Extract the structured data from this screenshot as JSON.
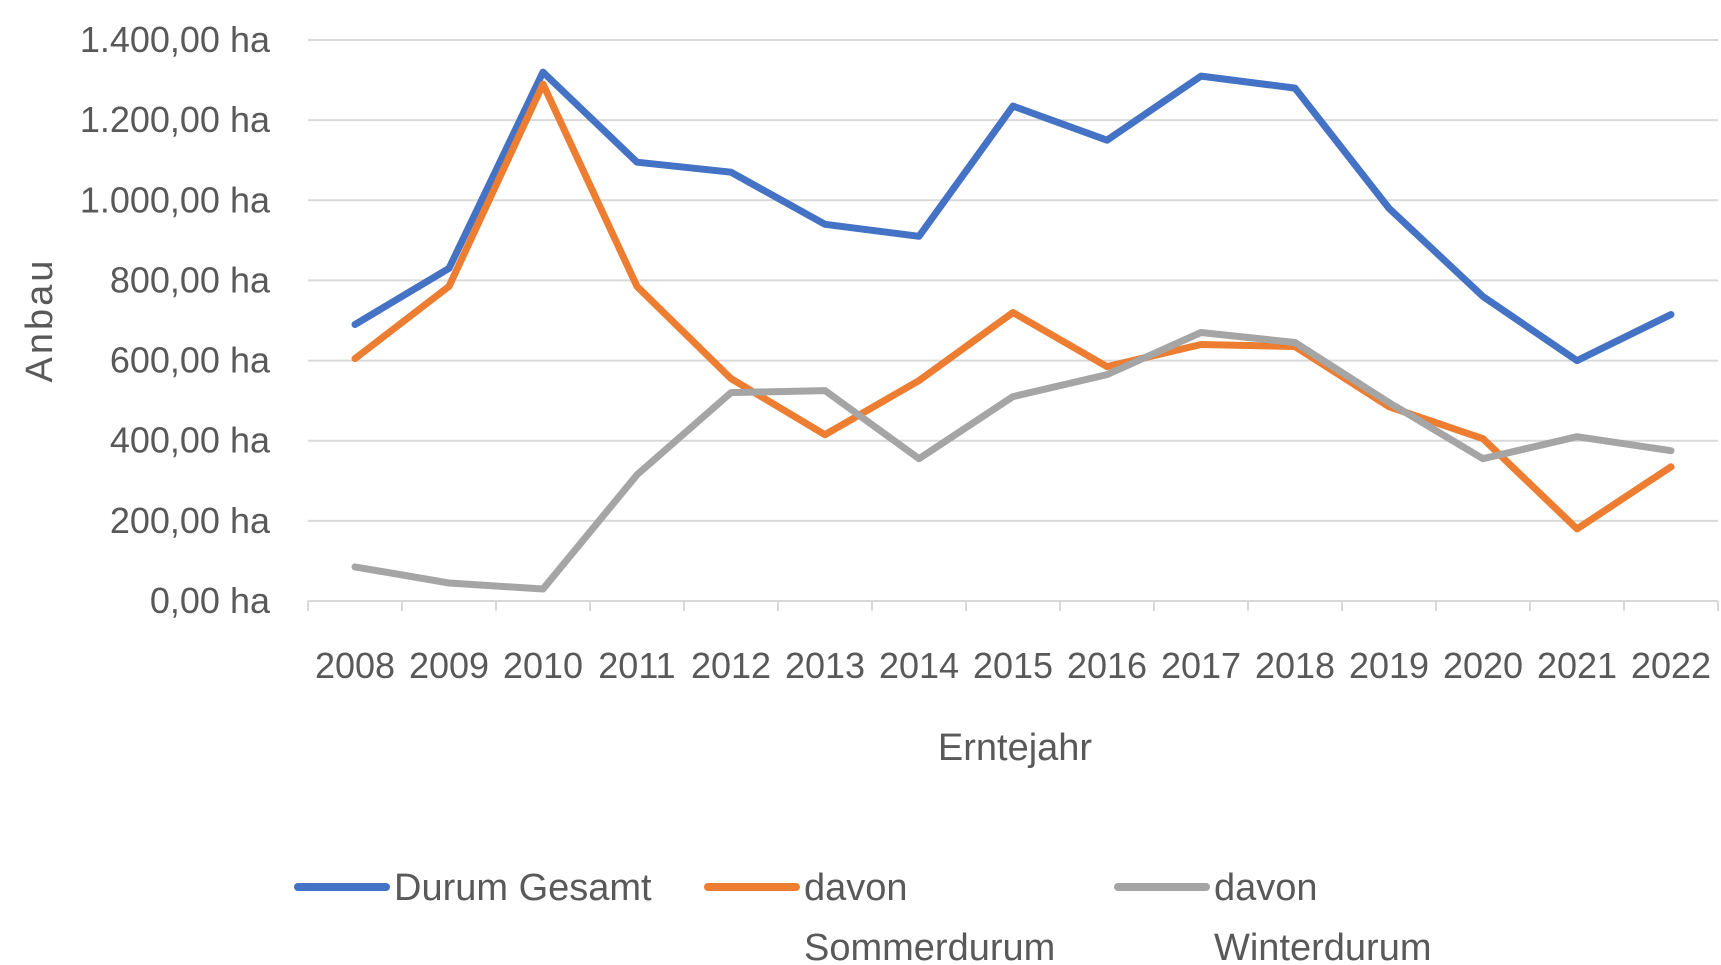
{
  "chart_data": {
    "type": "line",
    "title": "",
    "xlabel": "Erntejahr",
    "ylabel": "Anbau",
    "categories": [
      "2008",
      "2009",
      "2010",
      "2011",
      "2012",
      "2013",
      "2014",
      "2015",
      "2016",
      "2017",
      "2018",
      "2019",
      "2020",
      "2021",
      "2022"
    ],
    "y_tick_labels": [
      "0,00 ha",
      "200,00 ha",
      "400,00 ha",
      "600,00 ha",
      "800,00 ha",
      "1.000,00 ha",
      "1.200,00 ha",
      "1.400,00 ha"
    ],
    "ylim": [
      0,
      1400
    ],
    "grid": true,
    "legend_position": "bottom",
    "series": [
      {
        "name": "Durum Gesamt",
        "legend_lines": [
          "Durum Gesamt"
        ],
        "color": "#4472C4",
        "values": [
          690,
          830,
          1320,
          1095,
          1070,
          940,
          910,
          1235,
          1150,
          1310,
          1280,
          980,
          760,
          600,
          715
        ]
      },
      {
        "name": "davon Sommerdurum",
        "legend_lines": [
          "davon",
          "Sommerdurum"
        ],
        "color": "#ED7D31",
        "values": [
          605,
          785,
          1290,
          785,
          555,
          415,
          550,
          720,
          585,
          640,
          635,
          485,
          405,
          180,
          335
        ]
      },
      {
        "name": "davon Winterdurum",
        "legend_lines": [
          "davon",
          "Winterdurum"
        ],
        "color": "#A5A5A5",
        "values": [
          85,
          45,
          30,
          315,
          520,
          525,
          355,
          510,
          565,
          670,
          645,
          495,
          355,
          410,
          375
        ]
      }
    ]
  }
}
